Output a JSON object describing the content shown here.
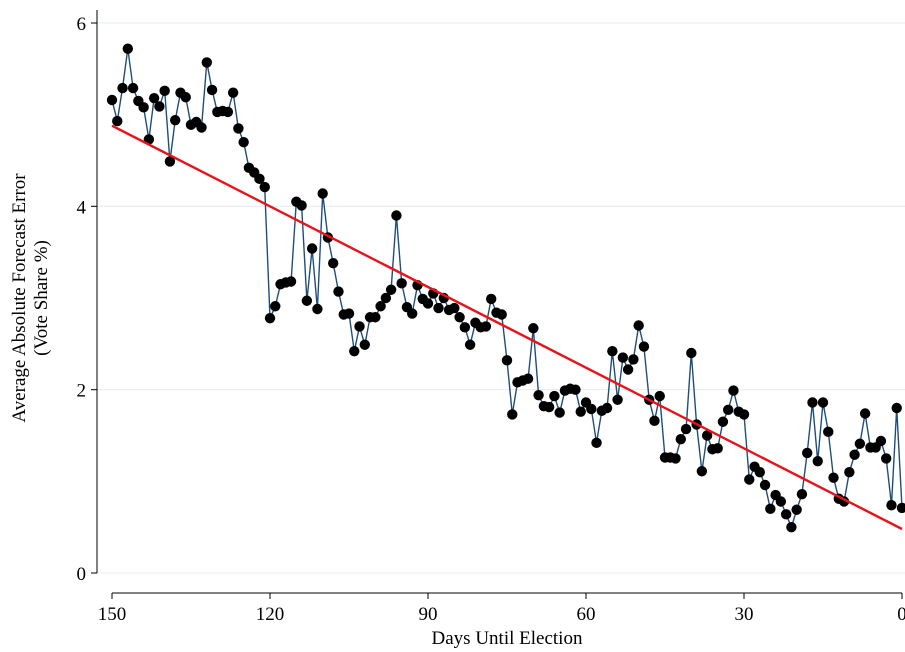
{
  "chart_data": {
    "type": "line",
    "title": "",
    "xlabel": "Days Until Election",
    "ylabel_lines": [
      "Average Absolute Forecast Error",
      "(Vote Share %)"
    ],
    "xlim": [
      150,
      0
    ],
    "ylim": [
      0,
      6
    ],
    "x_ticks": [
      150,
      120,
      90,
      60,
      30,
      0
    ],
    "y_ticks": [
      0,
      2,
      4,
      6
    ],
    "grid": true,
    "series": [
      {
        "kind": "line-with-markers",
        "line_color": "#1f4e79",
        "marker_color": "#000000",
        "x": [
          150,
          149,
          148,
          147,
          146,
          145,
          144,
          143,
          142,
          141,
          140,
          139,
          138,
          137,
          136,
          135,
          134,
          133,
          132,
          131,
          130,
          129,
          128,
          127,
          126,
          125,
          124,
          123,
          122,
          121,
          120,
          119,
          118,
          117,
          116,
          115,
          114,
          113,
          112,
          111,
          110,
          109,
          108,
          107,
          106,
          105,
          104,
          103,
          102,
          101,
          100,
          99,
          98,
          97,
          96,
          95,
          94,
          93,
          92,
          91,
          90,
          89,
          88,
          87,
          86,
          85,
          84,
          83,
          82,
          81,
          80,
          79,
          78,
          77,
          76,
          75,
          74,
          73,
          72,
          71,
          70,
          69,
          68,
          67,
          66,
          65,
          64,
          63,
          62,
          61,
          60,
          59,
          58,
          57,
          56,
          55,
          54,
          53,
          52,
          51,
          50,
          49,
          48,
          47,
          46,
          45,
          44,
          43,
          42,
          41,
          40,
          39,
          38,
          37,
          36,
          35,
          34,
          33,
          32,
          31,
          30,
          29,
          28,
          27,
          26,
          25,
          24,
          23,
          22,
          21,
          20,
          19,
          18,
          17,
          16,
          15,
          14,
          13,
          12,
          11,
          10,
          9,
          8,
          7,
          6,
          5,
          4,
          3,
          2,
          1,
          0
        ],
        "y": [
          5.16,
          4.93,
          5.29,
          5.72,
          5.29,
          5.15,
          5.08,
          4.73,
          5.18,
          5.09,
          5.26,
          4.49,
          4.94,
          5.24,
          5.19,
          4.89,
          4.92,
          4.86,
          5.57,
          5.27,
          5.03,
          5.04,
          5.03,
          5.24,
          4.85,
          4.7,
          4.42,
          4.37,
          4.3,
          4.21,
          2.78,
          2.91,
          3.15,
          3.17,
          3.18,
          4.05,
          4.01,
          2.97,
          3.54,
          2.88,
          4.14,
          3.66,
          3.38,
          3.07,
          2.82,
          2.83,
          2.42,
          2.69,
          2.49,
          2.79,
          2.79,
          2.91,
          3.0,
          3.09,
          3.9,
          3.16,
          2.9,
          2.83,
          3.14,
          2.99,
          2.94,
          3.05,
          2.89,
          3.0,
          2.87,
          2.89,
          2.79,
          2.68,
          2.49,
          2.73,
          2.68,
          2.69,
          2.99,
          2.84,
          2.82,
          2.32,
          1.73,
          2.08,
          2.1,
          2.12,
          2.67,
          1.94,
          1.82,
          1.81,
          1.93,
          1.75,
          1.99,
          2.01,
          2.0,
          1.76,
          1.86,
          1.79,
          1.42,
          1.77,
          1.8,
          2.42,
          1.89,
          2.35,
          2.22,
          2.33,
          2.7,
          2.47,
          1.89,
          1.66,
          1.93,
          1.26,
          1.26,
          1.25,
          1.46,
          1.57,
          2.4,
          1.62,
          1.11,
          1.5,
          1.35,
          1.36,
          1.65,
          1.78,
          1.99,
          1.76,
          1.73,
          1.02,
          1.16,
          1.1,
          0.96,
          0.7,
          0.85,
          0.78,
          0.64,
          0.5,
          0.69,
          0.86,
          1.31,
          1.86,
          1.22,
          1.86,
          1.54,
          1.04,
          0.81,
          0.78,
          1.1,
          1.29,
          1.41,
          1.74,
          1.37,
          1.37,
          1.44,
          1.25,
          0.74,
          1.8,
          0.71
        ]
      },
      {
        "kind": "fit-line",
        "line_color": "#e8131a",
        "x": [
          150,
          0
        ],
        "y": [
          4.88,
          0.48
        ]
      }
    ]
  }
}
